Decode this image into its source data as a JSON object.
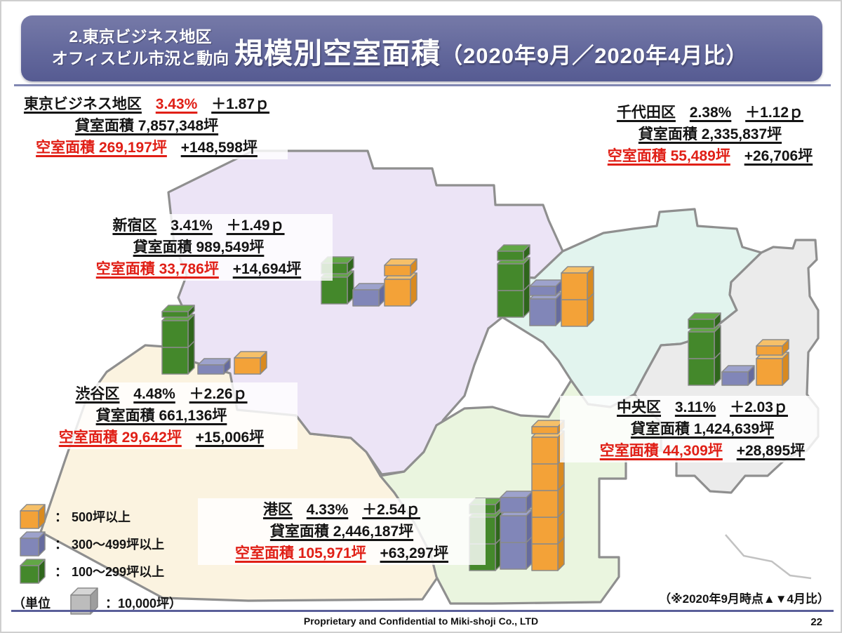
{
  "header": {
    "section_label_line1": "2.東京ビジネス地区",
    "section_label_line2": "オフィスビル市況と動向",
    "title": "規模別空室面積",
    "title_paren": "（2020年9月／2020年4月比）"
  },
  "districts": {
    "tokyo": {
      "name": "東京ビジネス地区",
      "rate": "3.43%",
      "rate_delta": "＋1.87ｐ",
      "rental": "貸室面積 7,857,348坪",
      "vacant": "空室面積 269,197坪",
      "vacant_delta": "+148,598坪"
    },
    "chiyoda": {
      "name": "千代田区",
      "rate": "2.38%",
      "rate_delta": "＋1.12ｐ",
      "rental": "貸室面積 2,335,837坪",
      "vacant": "空室面積 55,489坪",
      "vacant_delta": "+26,706坪"
    },
    "shinjuku": {
      "name": "新宿区",
      "rate": "3.41%",
      "rate_delta": "＋1.49ｐ",
      "rental": "貸室面積 989,549坪",
      "vacant": "空室面積 33,786坪",
      "vacant_delta": "+14,694坪"
    },
    "shibuya": {
      "name": "渋谷区",
      "rate": "4.48%",
      "rate_delta": "＋2.26ｐ",
      "rental": "貸室面積 661,136坪",
      "vacant": "空室面積 29,642坪",
      "vacant_delta": "+15,006坪"
    },
    "chuo": {
      "name": "中央区",
      "rate": "3.11%",
      "rate_delta": "＋2.03ｐ",
      "rental": "貸室面積 1,424,639坪",
      "vacant": "空室面積 44,309坪",
      "vacant_delta": "+28,895坪"
    },
    "minato": {
      "name": "港区",
      "rate": "4.33%",
      "rate_delta": "＋2.54ｐ",
      "rental": "貸室面積 2,446,187坪",
      "vacant": "空室面積 105,971坪",
      "vacant_delta": "+63,297坪"
    }
  },
  "legend": {
    "colon": "：",
    "rows": [
      {
        "icon": "orange-cube-icon",
        "label": "500坪以上"
      },
      {
        "icon": "purple-cube-icon",
        "label": "300〜499坪以上"
      },
      {
        "icon": "green-cube-icon",
        "label": "100〜299坪以上"
      }
    ],
    "unit_prefix": "（単位",
    "unit_label": "：10,000坪）"
  },
  "note": "（※2020年9月時点▲▼4月比）",
  "footer": {
    "confidential": "Proprietary and Confidential to Miki-shoji Co., LTD",
    "page": "22"
  },
  "colors": {
    "red": "#e01f16",
    "header_bg": "#63689c",
    "cube_orange": "#f3a238",
    "cube_purple": "#8186b8",
    "cube_green": "#44882b",
    "cube_gray": "#bcbcbc"
  },
  "chart_data": {
    "type": "bar",
    "title": "規模別空室面積（2020年9月／2020年4月比）",
    "legend_position": "bottom-left",
    "unit_note": "1キューブ = 10,000坪",
    "values_unit": "10,000坪 (cubes, estimated from figure)",
    "categories": [
      "100〜299坪以上",
      "300〜499坪以上",
      "500坪以上"
    ],
    "series": [
      {
        "name": "新宿区",
        "values": [
          1.4,
          0.6,
          1.4
        ]
      },
      {
        "name": "千代田区",
        "values": [
          2.35,
          1.35,
          2.0
        ]
      },
      {
        "name": "渋谷区",
        "values": [
          2.2,
          0.35,
          0.6
        ]
      },
      {
        "name": "中央区",
        "values": [
          2.35,
          0.5,
          1.35
        ]
      },
      {
        "name": "港区",
        "values": [
          2.35,
          2.55,
          5.25
        ]
      }
    ],
    "district_stats": [
      {
        "name": "東京ビジネス地区",
        "vacancy_rate": "3.43%",
        "rate_change": "＋1.87ｐ",
        "rental_area": "7,857,348坪",
        "vacant_area": "269,197坪",
        "vacant_change": "+148,598坪"
      },
      {
        "name": "千代田区",
        "vacancy_rate": "2.38%",
        "rate_change": "＋1.12ｐ",
        "rental_area": "2,335,837坪",
        "vacant_area": "55,489坪",
        "vacant_change": "+26,706坪"
      },
      {
        "name": "新宿区",
        "vacancy_rate": "3.41%",
        "rate_change": "＋1.49ｐ",
        "rental_area": "989,549坪",
        "vacant_area": "33,786坪",
        "vacant_change": "+14,694坪"
      },
      {
        "name": "渋谷区",
        "vacancy_rate": "4.48%",
        "rate_change": "＋2.26ｐ",
        "rental_area": "661,136坪",
        "vacant_area": "29,642坪",
        "vacant_change": "+15,006坪"
      },
      {
        "name": "中央区",
        "vacancy_rate": "3.11%",
        "rate_change": "＋2.03ｐ",
        "rental_area": "1,424,639坪",
        "vacant_area": "44,309坪",
        "vacant_change": "+28,895坪"
      },
      {
        "name": "港区",
        "vacancy_rate": "4.33%",
        "rate_change": "＋2.54ｐ",
        "rental_area": "2,446,187坪",
        "vacant_area": "105,971坪",
        "vacant_change": "+63,297坪"
      }
    ]
  }
}
